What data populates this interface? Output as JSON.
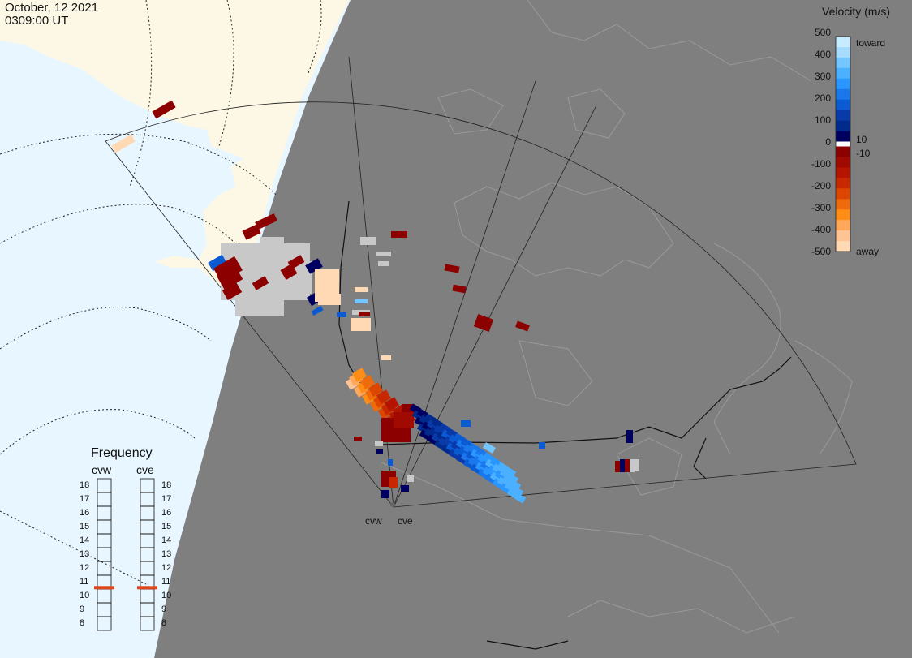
{
  "header": {
    "date": "October, 12 2021",
    "time": "0309:00 UT"
  },
  "colorbar": {
    "title": "Velocity (m/s)",
    "ticks": [
      "500",
      "400",
      "300",
      "200",
      "100",
      "0",
      "-100",
      "-200",
      "-300",
      "-400",
      "-500"
    ],
    "toward_label": "toward",
    "away_label": "away",
    "pos_threshold": "10",
    "neg_threshold": "-10",
    "colors": [
      "#c8ecff",
      "#73c6ff",
      "#2a96ff",
      "#0a5ad2",
      "#002b8c",
      "#000060",
      "#8c0000",
      "#b41400",
      "#dc4600",
      "#ff8c14",
      "#ffd8b4"
    ]
  },
  "frequency": {
    "title": "Frequency",
    "radars": [
      {
        "name": "cvw",
        "value_mhz": 10.6
      },
      {
        "name": "cve",
        "value_mhz": 10.6
      }
    ],
    "scale": [
      "18",
      "17",
      "16",
      "15",
      "14",
      "13",
      "12",
      "11",
      "10",
      "9",
      "8"
    ],
    "marker_color": "#e0461e"
  },
  "radars": [
    {
      "name": "cvw"
    },
    {
      "name": "cve"
    }
  ],
  "map_colors": {
    "ocean_day": "#e8f6ff",
    "land_day": "#fdf8e6",
    "night": "#7f7f7f",
    "low_quality": "#c8c8c8"
  }
}
